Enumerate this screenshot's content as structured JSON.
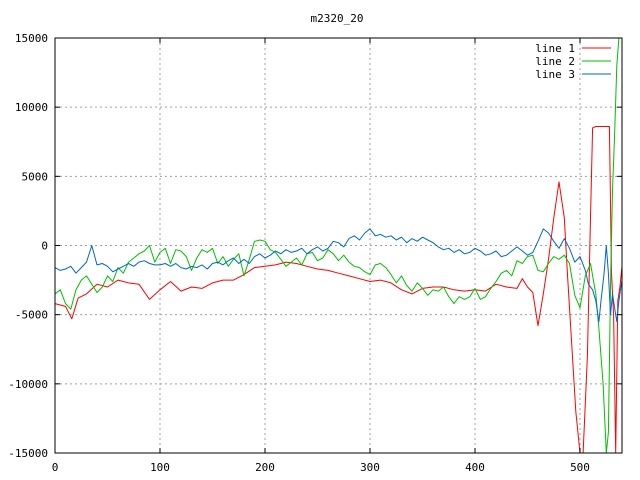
{
  "chart_data": {
    "type": "line",
    "title": "m2320_20",
    "xlabel": "",
    "ylabel": "",
    "xlim": [
      0,
      540
    ],
    "ylim": [
      -15000,
      15000
    ],
    "xticks": [
      0,
      100,
      200,
      300,
      400,
      500
    ],
    "yticks": [
      -15000,
      -10000,
      -5000,
      0,
      5000,
      10000,
      15000
    ],
    "grid": true,
    "legend_position": "top-right",
    "series": [
      {
        "name": "line 1",
        "color": "#ff0000",
        "points": [
          [
            0,
            -4200
          ],
          [
            10,
            -4400
          ],
          [
            16,
            -5300
          ],
          [
            22,
            -3800
          ],
          [
            30,
            -3500
          ],
          [
            40,
            -2800
          ],
          [
            50,
            -3000
          ],
          [
            60,
            -2500
          ],
          [
            70,
            -2700
          ],
          [
            80,
            -2800
          ],
          [
            90,
            -3900
          ],
          [
            100,
            -3200
          ],
          [
            110,
            -2600
          ],
          [
            120,
            -3300
          ],
          [
            130,
            -3000
          ],
          [
            140,
            -3100
          ],
          [
            150,
            -2700
          ],
          [
            160,
            -2500
          ],
          [
            170,
            -2500
          ],
          [
            180,
            -2100
          ],
          [
            190,
            -1600
          ],
          [
            200,
            -1500
          ],
          [
            210,
            -1400
          ],
          [
            220,
            -1200
          ],
          [
            230,
            -1300
          ],
          [
            240,
            -1500
          ],
          [
            250,
            -1700
          ],
          [
            260,
            -1800
          ],
          [
            270,
            -2000
          ],
          [
            280,
            -2200
          ],
          [
            290,
            -2400
          ],
          [
            300,
            -2600
          ],
          [
            310,
            -2500
          ],
          [
            320,
            -2700
          ],
          [
            330,
            -3200
          ],
          [
            340,
            -3500
          ],
          [
            350,
            -3100
          ],
          [
            360,
            -3000
          ],
          [
            370,
            -3000
          ],
          [
            380,
            -3200
          ],
          [
            390,
            -3300
          ],
          [
            400,
            -3200
          ],
          [
            410,
            -3300
          ],
          [
            420,
            -2800
          ],
          [
            430,
            -3000
          ],
          [
            440,
            -3100
          ],
          [
            445,
            -2400
          ],
          [
            450,
            -3000
          ],
          [
            455,
            -3400
          ],
          [
            460,
            -5800
          ],
          [
            465,
            -3500
          ],
          [
            470,
            -1000
          ],
          [
            475,
            2000
          ],
          [
            480,
            4600
          ],
          [
            485,
            2000
          ],
          [
            488,
            -2000
          ],
          [
            492,
            -7000
          ],
          [
            496,
            -12000
          ],
          [
            500,
            -15000
          ],
          [
            503,
            -15000
          ],
          [
            507,
            -8000
          ],
          [
            510,
            2000
          ],
          [
            512,
            8500
          ],
          [
            515,
            8600
          ],
          [
            520,
            8600
          ],
          [
            525,
            8600
          ],
          [
            528,
            8600
          ],
          [
            530,
            -2000
          ],
          [
            532,
            -5000
          ],
          [
            534,
            -15000
          ],
          [
            536,
            -4000
          ],
          [
            538,
            -3000
          ],
          [
            540,
            -1500
          ]
        ]
      },
      {
        "name": "line 2",
        "color": "#00c000",
        "points": [
          [
            0,
            -3500
          ],
          [
            5,
            -3200
          ],
          [
            10,
            -4200
          ],
          [
            15,
            -4600
          ],
          [
            20,
            -3200
          ],
          [
            25,
            -2500
          ],
          [
            30,
            -2200
          ],
          [
            35,
            -2800
          ],
          [
            40,
            -3400
          ],
          [
            45,
            -3000
          ],
          [
            50,
            -2200
          ],
          [
            55,
            -2600
          ],
          [
            60,
            -1600
          ],
          [
            65,
            -2000
          ],
          [
            70,
            -1200
          ],
          [
            75,
            -900
          ],
          [
            80,
            -600
          ],
          [
            85,
            -400
          ],
          [
            90,
            0
          ],
          [
            95,
            -1200
          ],
          [
            100,
            -500
          ],
          [
            105,
            -200
          ],
          [
            110,
            -1300
          ],
          [
            115,
            -300
          ],
          [
            120,
            -400
          ],
          [
            125,
            -800
          ],
          [
            130,
            -1800
          ],
          [
            135,
            -900
          ],
          [
            140,
            -300
          ],
          [
            145,
            -500
          ],
          [
            150,
            -200
          ],
          [
            155,
            -1300
          ],
          [
            160,
            -800
          ],
          [
            165,
            -1500
          ],
          [
            170,
            -1000
          ],
          [
            175,
            -600
          ],
          [
            180,
            -2200
          ],
          [
            185,
            -1000
          ],
          [
            190,
            300
          ],
          [
            195,
            400
          ],
          [
            200,
            300
          ],
          [
            205,
            -300
          ],
          [
            210,
            -500
          ],
          [
            215,
            -1000
          ],
          [
            220,
            -1500
          ],
          [
            225,
            -1200
          ],
          [
            230,
            -900
          ],
          [
            235,
            -1400
          ],
          [
            240,
            -600
          ],
          [
            245,
            -500
          ],
          [
            250,
            -1100
          ],
          [
            255,
            -900
          ],
          [
            260,
            -300
          ],
          [
            265,
            -600
          ],
          [
            270,
            -1100
          ],
          [
            275,
            -700
          ],
          [
            280,
            -1200
          ],
          [
            285,
            -1500
          ],
          [
            290,
            -1600
          ],
          [
            295,
            -1900
          ],
          [
            300,
            -2100
          ],
          [
            305,
            -1400
          ],
          [
            310,
            -1300
          ],
          [
            315,
            -1600
          ],
          [
            320,
            -2100
          ],
          [
            325,
            -2700
          ],
          [
            330,
            -2200
          ],
          [
            335,
            -2900
          ],
          [
            340,
            -3300
          ],
          [
            345,
            -2700
          ],
          [
            350,
            -3100
          ],
          [
            355,
            -3600
          ],
          [
            360,
            -3200
          ],
          [
            365,
            -3300
          ],
          [
            370,
            -3000
          ],
          [
            375,
            -3700
          ],
          [
            380,
            -4200
          ],
          [
            385,
            -3700
          ],
          [
            390,
            -3900
          ],
          [
            395,
            -3700
          ],
          [
            400,
            -3100
          ],
          [
            405,
            -3900
          ],
          [
            410,
            -3700
          ],
          [
            415,
            -3100
          ],
          [
            420,
            -2600
          ],
          [
            425,
            -2000
          ],
          [
            430,
            -1800
          ],
          [
            435,
            -2200
          ],
          [
            440,
            -1100
          ],
          [
            445,
            -1300
          ],
          [
            450,
            -800
          ],
          [
            455,
            -700
          ],
          [
            460,
            -1800
          ],
          [
            465,
            -1900
          ],
          [
            470,
            -1300
          ],
          [
            475,
            -800
          ],
          [
            480,
            -1000
          ],
          [
            485,
            -700
          ],
          [
            490,
            -1300
          ],
          [
            495,
            -3600
          ],
          [
            500,
            -4500
          ],
          [
            505,
            -2200
          ],
          [
            510,
            -1300
          ],
          [
            515,
            -3500
          ],
          [
            518,
            -6000
          ],
          [
            522,
            -10000
          ],
          [
            525,
            -15000
          ],
          [
            527,
            -13500
          ],
          [
            529,
            -3000
          ],
          [
            531,
            4000
          ],
          [
            533,
            8000
          ],
          [
            535,
            13000
          ],
          [
            537,
            15000
          ]
        ]
      },
      {
        "name": "line 3",
        "color": "#0066cc",
        "points": [
          [
            0,
            -1600
          ],
          [
            5,
            -1800
          ],
          [
            10,
            -1700
          ],
          [
            15,
            -1500
          ],
          [
            20,
            -2000
          ],
          [
            25,
            -1600
          ],
          [
            30,
            -1200
          ],
          [
            35,
            0
          ],
          [
            40,
            -1400
          ],
          [
            45,
            -1300
          ],
          [
            50,
            -1500
          ],
          [
            55,
            -1900
          ],
          [
            60,
            -1700
          ],
          [
            65,
            -1500
          ],
          [
            70,
            -1300
          ],
          [
            75,
            -1500
          ],
          [
            80,
            -1200
          ],
          [
            85,
            -1100
          ],
          [
            90,
            -1300
          ],
          [
            95,
            -1400
          ],
          [
            100,
            -1400
          ],
          [
            105,
            -1300
          ],
          [
            110,
            -1500
          ],
          [
            115,
            -1300
          ],
          [
            120,
            -1600
          ],
          [
            125,
            -1700
          ],
          [
            130,
            -1500
          ],
          [
            135,
            -1600
          ],
          [
            140,
            -1400
          ],
          [
            145,
            -1700
          ],
          [
            150,
            -1300
          ],
          [
            155,
            -1200
          ],
          [
            160,
            -1400
          ],
          [
            165,
            -1100
          ],
          [
            170,
            -900
          ],
          [
            175,
            -1300
          ],
          [
            180,
            -1000
          ],
          [
            185,
            -1300
          ],
          [
            190,
            -800
          ],
          [
            195,
            -600
          ],
          [
            200,
            -900
          ],
          [
            205,
            -700
          ],
          [
            210,
            -400
          ],
          [
            215,
            -600
          ],
          [
            220,
            -300
          ],
          [
            225,
            -500
          ],
          [
            230,
            -400
          ],
          [
            235,
            -200
          ],
          [
            240,
            -600
          ],
          [
            245,
            -300
          ],
          [
            250,
            -100
          ],
          [
            255,
            -400
          ],
          [
            260,
            -200
          ],
          [
            265,
            300
          ],
          [
            270,
            200
          ],
          [
            275,
            -100
          ],
          [
            280,
            500
          ],
          [
            285,
            700
          ],
          [
            290,
            400
          ],
          [
            295,
            900
          ],
          [
            300,
            1200
          ],
          [
            305,
            700
          ],
          [
            310,
            800
          ],
          [
            315,
            600
          ],
          [
            320,
            700
          ],
          [
            325,
            400
          ],
          [
            330,
            600
          ],
          [
            335,
            200
          ],
          [
            340,
            500
          ],
          [
            345,
            300
          ],
          [
            350,
            600
          ],
          [
            355,
            400
          ],
          [
            360,
            200
          ],
          [
            365,
            -100
          ],
          [
            370,
            -300
          ],
          [
            375,
            -200
          ],
          [
            380,
            -500
          ],
          [
            385,
            -300
          ],
          [
            390,
            -600
          ],
          [
            395,
            -500
          ],
          [
            400,
            -200
          ],
          [
            405,
            -400
          ],
          [
            410,
            -700
          ],
          [
            415,
            -600
          ],
          [
            420,
            -400
          ],
          [
            425,
            -800
          ],
          [
            430,
            -700
          ],
          [
            435,
            -400
          ],
          [
            440,
            -100
          ],
          [
            445,
            -400
          ],
          [
            450,
            -700
          ],
          [
            455,
            -500
          ],
          [
            460,
            300
          ],
          [
            465,
            1200
          ],
          [
            470,
            900
          ],
          [
            475,
            300
          ],
          [
            480,
            -200
          ],
          [
            485,
            500
          ],
          [
            490,
            -200
          ],
          [
            495,
            -1200
          ],
          [
            500,
            -800
          ],
          [
            505,
            -1800
          ],
          [
            508,
            -2800
          ],
          [
            512,
            -3200
          ],
          [
            515,
            -4000
          ],
          [
            518,
            -5500
          ],
          [
            520,
            -4000
          ],
          [
            523,
            -2000
          ],
          [
            525,
            0
          ],
          [
            527,
            -2000
          ],
          [
            529,
            -5000
          ],
          [
            531,
            -3500
          ],
          [
            533,
            -4500
          ],
          [
            535,
            -5500
          ],
          [
            537,
            -4000
          ],
          [
            539,
            -3000
          ],
          [
            540,
            -2500
          ]
        ]
      }
    ]
  }
}
